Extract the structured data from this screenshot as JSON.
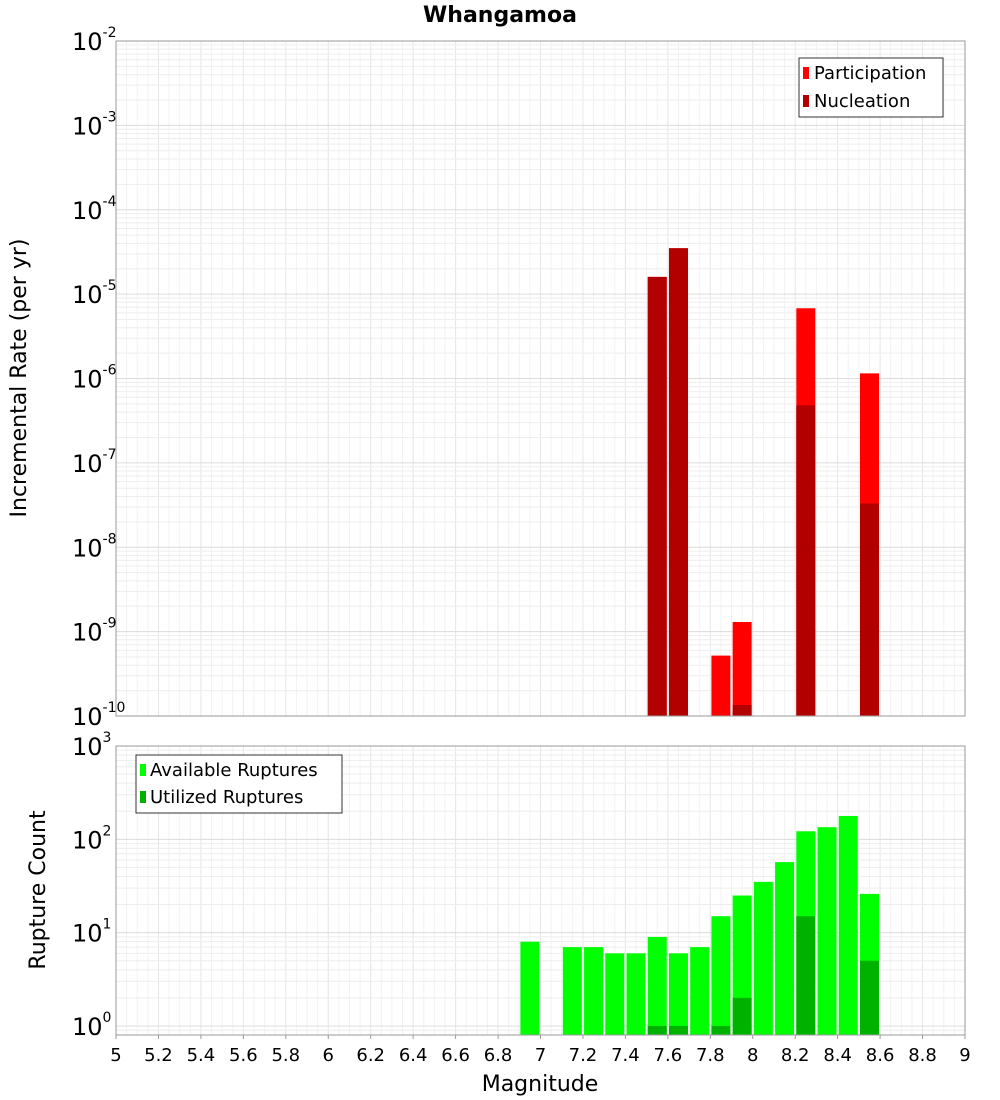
{
  "chart_data": [
    {
      "type": "bar",
      "title": "Whangamoa",
      "xlabel": "",
      "ylabel": "Incremental Rate (per yr)",
      "y_scale": "log",
      "xlim": [
        5,
        9
      ],
      "ylim": [
        1e-10,
        0.01
      ],
      "y_ticks": [
        {
          "base": "10",
          "exp": "-10"
        },
        {
          "base": "10",
          "exp": "-9"
        },
        {
          "base": "10",
          "exp": "-8"
        },
        {
          "base": "10",
          "exp": "-7"
        },
        {
          "base": "10",
          "exp": "-6"
        },
        {
          "base": "10",
          "exp": "-5"
        },
        {
          "base": "10",
          "exp": "-4"
        },
        {
          "base": "10",
          "exp": "-3"
        },
        {
          "base": "10",
          "exp": "-2"
        }
      ],
      "grid": true,
      "legend_position": "top-right",
      "series": [
        {
          "name": "Participation",
          "color": "#ff0000",
          "x": [
            7.55,
            7.65,
            7.85,
            7.95,
            8.25,
            8.55
          ],
          "values": [
            1.6e-05,
            3.5e-05,
            5.2e-10,
            1.3e-09,
            6.8e-06,
            1.15e-06
          ]
        },
        {
          "name": "Nucleation",
          "color": "#b20000",
          "x": [
            7.55,
            7.65,
            7.95,
            8.25,
            8.55
          ],
          "values": [
            1.6e-05,
            3.5e-05,
            1.35e-10,
            4.8e-07,
            3.3e-08
          ]
        }
      ]
    },
    {
      "type": "bar",
      "xlabel": "Magnitude",
      "ylabel": "Rupture Count",
      "y_scale": "log",
      "xlim": [
        5,
        9
      ],
      "ylim": [
        0.8,
        1000
      ],
      "x_ticks": [
        "5",
        "5.2",
        "5.4",
        "5.6",
        "5.8",
        "6",
        "6.2",
        "6.4",
        "6.6",
        "6.8",
        "7",
        "7.2",
        "7.4",
        "7.6",
        "7.8",
        "8",
        "8.2",
        "8.4",
        "8.6",
        "8.8",
        "9"
      ],
      "y_ticks": [
        {
          "base": "10",
          "exp": "0"
        },
        {
          "base": "10",
          "exp": "1"
        },
        {
          "base": "10",
          "exp": "2"
        },
        {
          "base": "10",
          "exp": "3"
        }
      ],
      "grid": true,
      "legend_position": "top-left",
      "series": [
        {
          "name": "Available Ruptures",
          "color": "#00ff00",
          "x": [
            6.95,
            7.15,
            7.25,
            7.35,
            7.45,
            7.55,
            7.65,
            7.75,
            7.85,
            7.95,
            8.05,
            8.15,
            8.25,
            8.35,
            8.45,
            8.55
          ],
          "values": [
            8,
            7,
            7,
            6,
            6,
            9,
            6,
            7,
            15,
            25,
            35,
            57,
            122,
            135,
            178,
            26
          ]
        },
        {
          "name": "Utilized Ruptures",
          "color": "#00b200",
          "x": [
            7.55,
            7.65,
            7.85,
            7.95,
            8.25,
            8.55
          ],
          "values": [
            1,
            1,
            1,
            2,
            15,
            5
          ]
        }
      ]
    }
  ]
}
